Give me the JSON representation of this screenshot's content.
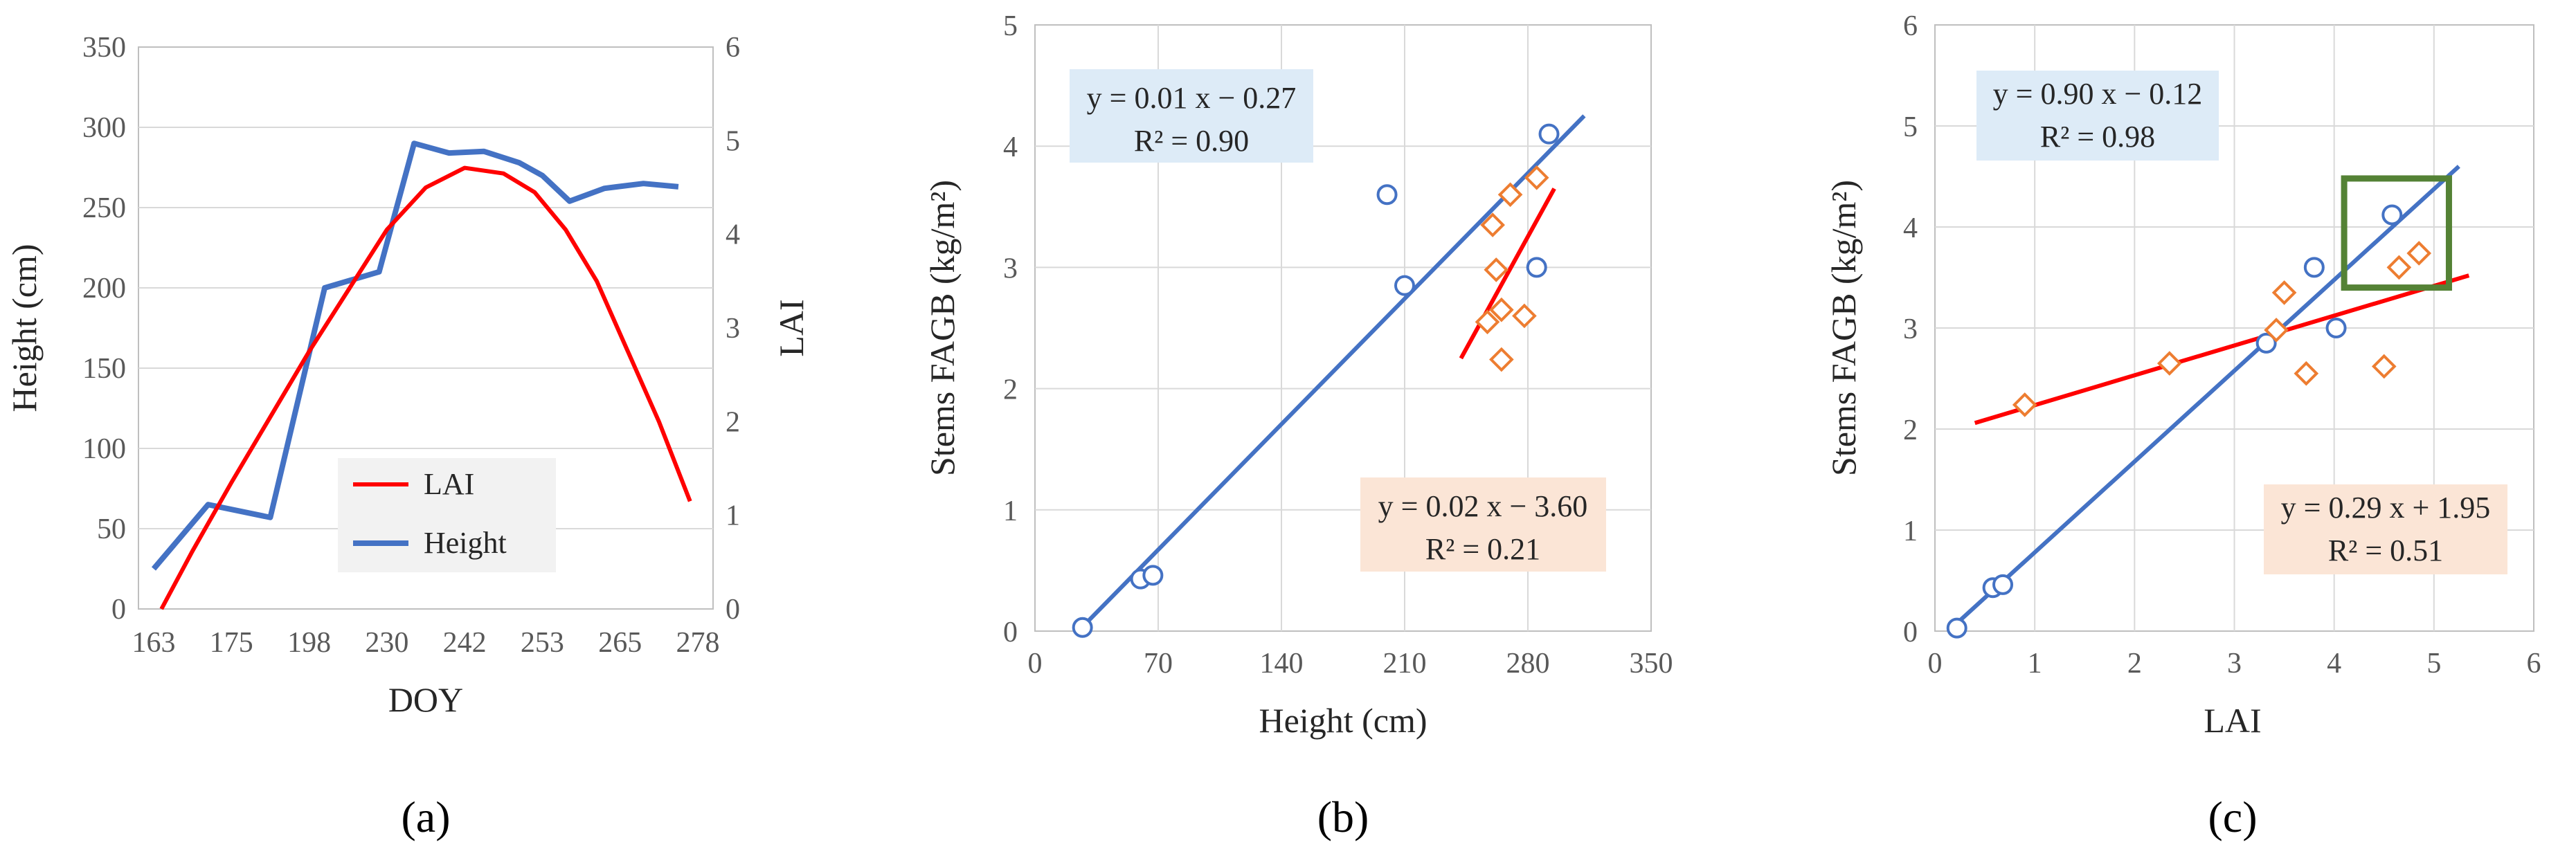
{
  "chart_data": [
    {
      "id": "a",
      "type": "line",
      "panel_label": "(a)",
      "xlabel": "DOY",
      "ylabel": "Height (cm)",
      "y2label": "LAI",
      "x_ticks": [
        163,
        175,
        198,
        230,
        242,
        253,
        265,
        278
      ],
      "ylim": [
        0,
        350
      ],
      "y_ticks": [
        0,
        50,
        100,
        150,
        200,
        250,
        300,
        350
      ],
      "y2lim": [
        0,
        6
      ],
      "y2_ticks": [
        0,
        1,
        2,
        3,
        4,
        5,
        6
      ],
      "series": [
        {
          "name": "Height",
          "axis": "left",
          "color": "#4472C4",
          "x_index": [
            0,
            0.7,
            1.5,
            2.2,
            2.9,
            3.35,
            3.8,
            4.25,
            4.7,
            5.0,
            5.35,
            5.8,
            6.3,
            6.75
          ],
          "values": [
            25,
            65,
            57,
            200,
            210,
            290,
            284,
            285,
            278,
            270,
            254,
            262,
            265,
            263
          ]
        },
        {
          "name": "LAI",
          "axis": "right",
          "color": "#FF0000",
          "x_index": [
            0.1,
            0.5,
            1.0,
            1.5,
            2.0,
            2.5,
            3.0,
            3.5,
            4.0,
            4.5,
            4.9,
            5.3,
            5.7,
            6.1,
            6.5,
            6.9
          ],
          "values": [
            0,
            0.62,
            1.35,
            2.05,
            2.75,
            3.4,
            4.05,
            4.5,
            4.71,
            4.65,
            4.45,
            4.05,
            3.5,
            2.75,
            2.0,
            1.15
          ]
        }
      ],
      "legend": [
        "LAI",
        "Height"
      ]
    },
    {
      "id": "b",
      "type": "scatter",
      "panel_label": "(b)",
      "xlabel": "Height (cm)",
      "ylabel": "Stems FAGB (kg/m²)",
      "xlim": [
        0,
        350
      ],
      "x_ticks": [
        0,
        70,
        140,
        210,
        280,
        350
      ],
      "ylim": [
        0,
        5
      ],
      "y_ticks": [
        0,
        1,
        2,
        3,
        4,
        5
      ],
      "series": [
        {
          "name": "blue circles",
          "marker": "circle",
          "color": "#4472C4",
          "x": [
            27,
            60,
            67,
            200,
            210,
            285,
            292
          ],
          "y": [
            0.03,
            0.43,
            0.46,
            3.6,
            2.85,
            3.0,
            4.1
          ],
          "fit": {
            "x": [
              28,
              312
            ],
            "y": [
              0.05,
              4.25
            ]
          }
        },
        {
          "name": "orange diamonds",
          "marker": "diamond",
          "color": "#ED7D31",
          "x": [
            257,
            260,
            262,
            265,
            265,
            270,
            278,
            285
          ],
          "y": [
            2.55,
            3.35,
            2.98,
            2.65,
            2.24,
            3.6,
            2.6,
            3.74
          ],
          "fit": {
            "x": [
              242,
              295
            ],
            "y": [
              2.25,
              3.65
            ]
          }
        }
      ],
      "fit_colors": [
        "#4472C4",
        "#FF0000"
      ],
      "equations": [
        {
          "line1": "y = 0.01 x − 0.27",
          "line2": "R² = 0.90",
          "bg": "#DDEBF7"
        },
        {
          "line1": "y = 0.02 x − 3.60",
          "line2": "R² = 0.21",
          "bg": "#FBE5D6"
        }
      ]
    },
    {
      "id": "c",
      "type": "scatter",
      "panel_label": "(c)",
      "xlabel": "LAI",
      "ylabel": "Stems FAGB (kg/m²)",
      "xlim": [
        0,
        6
      ],
      "x_ticks": [
        0,
        1,
        2,
        3,
        4,
        5,
        6
      ],
      "ylim": [
        0,
        6
      ],
      "y_ticks": [
        0,
        1,
        2,
        3,
        4,
        5,
        6
      ],
      "series": [
        {
          "name": "blue circles",
          "marker": "circle",
          "color": "#4472C4",
          "x": [
            0.22,
            0.58,
            0.68,
            3.32,
            3.8,
            4.02,
            4.58
          ],
          "y": [
            0.03,
            0.43,
            0.46,
            2.85,
            3.6,
            3.0,
            4.12
          ],
          "fit": {
            "x": [
              0.2,
              5.25
            ],
            "y": [
              0.06,
              4.6
            ]
          }
        },
        {
          "name": "orange diamonds",
          "marker": "diamond",
          "color": "#ED7D31",
          "x": [
            0.9,
            2.35,
            3.42,
            3.5,
            3.72,
            4.5,
            4.65,
            4.85
          ],
          "y": [
            2.24,
            2.65,
            2.98,
            3.35,
            2.55,
            2.62,
            3.6,
            3.74
          ],
          "fit": {
            "x": [
              0.4,
              5.35
            ],
            "y": [
              2.06,
              3.52
            ]
          }
        }
      ],
      "fit_colors": [
        "#4472C4",
        "#FF0000"
      ],
      "highlight_box": {
        "x": [
          4.1,
          5.15
        ],
        "y": [
          3.4,
          4.48
        ],
        "color": "#548235"
      },
      "equations": [
        {
          "line1": "y = 0.90 x − 0.12",
          "line2": "R² = 0.98",
          "bg": "#DDEBF7"
        },
        {
          "line1": "y = 0.29 x + 1.95",
          "line2": "R² = 0.51",
          "bg": "#FBE5D6"
        }
      ]
    }
  ]
}
